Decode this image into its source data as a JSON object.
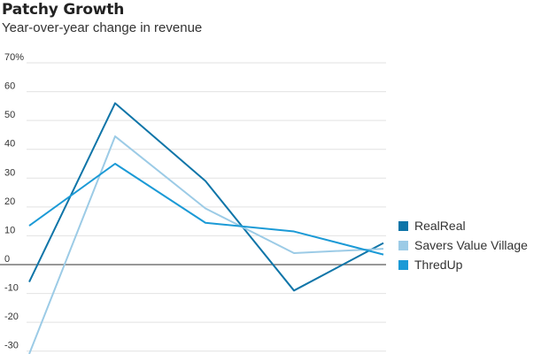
{
  "title": "Patchy Growth",
  "subtitle": "Year-over-year change in revenue",
  "colors": {
    "RealReal": "#0f75a8",
    "Savers Value Village": "#9ccbe6",
    "ThredUp": "#1b9ad6",
    "grid": "#e2e2e2",
    "zero_line": "#777777",
    "tick_text": "#333333"
  },
  "chart_data": {
    "type": "line",
    "title": "Patchy Growth",
    "subtitle": "Year-over-year change in revenue",
    "xlabel": "",
    "ylabel": "",
    "x": [
      0,
      1,
      2,
      3,
      4
    ],
    "ylim": [
      -30,
      70
    ],
    "y_ticks": [
      70,
      60,
      50,
      40,
      30,
      20,
      10,
      0,
      -10,
      -20,
      -30
    ],
    "y_tick_labels": [
      "70%",
      "60",
      "50",
      "40",
      "30",
      "20",
      "10",
      "0",
      "-10",
      "-20",
      "-30"
    ],
    "grid": true,
    "legend_position": "right",
    "series": [
      {
        "name": "RealReal",
        "values": [
          -6,
          56,
          29,
          -9,
          7.5
        ]
      },
      {
        "name": "Savers Value Village",
        "values": [
          -31,
          44.5,
          19.5,
          4,
          5.5
        ]
      },
      {
        "name": "ThredUp",
        "values": [
          13.5,
          35,
          14.5,
          11.5,
          3.5
        ]
      }
    ]
  }
}
